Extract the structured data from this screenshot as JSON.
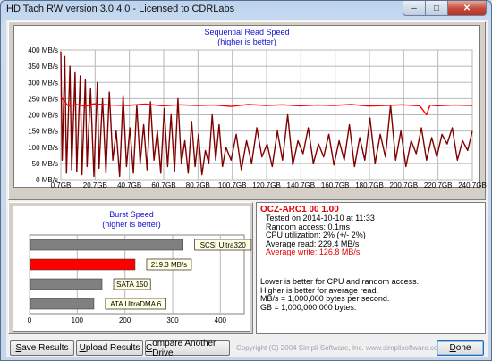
{
  "window": {
    "title": "HD Tach RW version 3.0.4.0 - Licensed to CDRLabs",
    "controls": [
      "minimize",
      "maximize",
      "close"
    ]
  },
  "sequential": {
    "title_line1": "Sequential Read Speed",
    "title_line2": "(higher is better)",
    "y_ticks": [
      "400 MB/s",
      "350 MB/s",
      "300 MB/s",
      "250 MB/s",
      "200 MB/s",
      "150 MB/s",
      "100 MB/s",
      "50 MB/s",
      "0 MB/s"
    ],
    "x_ticks": [
      "0.7GB",
      "20.7GB",
      "40.7GB",
      "60.7GB",
      "80.7GB",
      "100.7GB",
      "120.7GB",
      "140.7GB",
      "160.7GB",
      "180.7GB",
      "200.7GB",
      "220.7GB",
      "240.7GB"
    ]
  },
  "burst": {
    "title_line1": "Burst Speed",
    "title_line2": "(higher is better)",
    "x_ticks": [
      "0",
      "100",
      "200",
      "300",
      "400"
    ]
  },
  "info": {
    "drive_name": "OCZ-ARC1 00 1.00",
    "tested": "Tested on 2014-10-10 at 11:33",
    "random_access": "Random access: 0.1ms",
    "cpu_utilization": "CPU utilization: 2% (+/- 2%)",
    "average_read": "Average read: 229.4 MB/s",
    "average_write": "Average write: 126.8 MB/s",
    "note1": "Lower is better for CPU and random access.",
    "note2": "Higher is better for average read.",
    "note3": "MB/s = 1,000,000 bytes per second.",
    "note4": "GB = 1,000,000,000 bytes."
  },
  "buttons": {
    "save_prefix": "S",
    "save_rest": "ave Results",
    "upload_prefix": "U",
    "upload_rest": "pload Results",
    "compare_prefix": "C",
    "compare_rest": "ompare Another Drive",
    "done_prefix": "D",
    "done_rest": "one"
  },
  "footer": {
    "copyright": "Copyright (C) 2004 Simpli Software, Inc. www.simplisoftware.com"
  },
  "colors": {
    "read_line": "#ff0000",
    "write_line": "#800000",
    "grid": "#b8b8b8",
    "title_blue": "#1010d0"
  },
  "chart_data": [
    {
      "type": "line",
      "title": "Sequential Read Speed",
      "subtitle": "(higher is better)",
      "xlabel": "",
      "ylabel": "",
      "x_unit": "GB",
      "y_unit": "MB/s",
      "xlim": [
        0.7,
        240.7
      ],
      "ylim": [
        0,
        400
      ],
      "grid": true,
      "series": [
        {
          "color": "#ff0000",
          "x": [
            0.7,
            5,
            10,
            15,
            20,
            30,
            40,
            50,
            60,
            70,
            80,
            90,
            100,
            110,
            120,
            130,
            140,
            150,
            160,
            170,
            180,
            190,
            200,
            210,
            214,
            216,
            220,
            230,
            240.7
          ],
          "y": [
            255,
            228,
            232,
            226,
            234,
            230,
            229,
            233,
            228,
            231,
            229,
            230,
            226,
            232,
            229,
            231,
            228,
            230,
            229,
            232,
            227,
            229,
            231,
            228,
            200,
            230,
            228,
            230,
            229
          ]
        },
        {
          "color": "#800000",
          "x": [
            0.7,
            1.5,
            3,
            4,
            6,
            7,
            9,
            10,
            12,
            13,
            15,
            16,
            18,
            20,
            22,
            23,
            25,
            27,
            29,
            31,
            33,
            35,
            37,
            39,
            41,
            43,
            45,
            47,
            49,
            51,
            53,
            55,
            57,
            59,
            61,
            63,
            65,
            67,
            69,
            71,
            73,
            75,
            77,
            79,
            81,
            83,
            85,
            87,
            89,
            91,
            93,
            95,
            97,
            100,
            103,
            106,
            109,
            112,
            115,
            118,
            121,
            124,
            127,
            130,
            133,
            136,
            139,
            142,
            145,
            148,
            151,
            154,
            157,
            160,
            163,
            166,
            169,
            172,
            175,
            178,
            181,
            184,
            187,
            190,
            193,
            196,
            199,
            202,
            205,
            208,
            211,
            214,
            217,
            220,
            223,
            226,
            229,
            232,
            235,
            238,
            240.7
          ],
          "y": [
            395,
            60,
            380,
            20,
            350,
            30,
            330,
            25,
            320,
            15,
            310,
            40,
            280,
            10,
            300,
            35,
            250,
            20,
            270,
            60,
            150,
            10,
            260,
            40,
            160,
            20,
            230,
            50,
            170,
            30,
            240,
            60,
            150,
            20,
            220,
            40,
            200,
            25,
            250,
            50,
            120,
            20,
            180,
            40,
            140,
            15,
            90,
            50,
            200,
            60,
            170,
            40,
            100,
            60,
            140,
            30,
            120,
            50,
            160,
            70,
            110,
            40,
            150,
            60,
            200,
            45,
            120,
            80,
            160,
            50,
            110,
            70,
            140,
            45,
            120,
            60,
            170,
            40,
            130,
            60,
            190,
            50,
            140,
            70,
            230,
            60,
            150,
            40,
            120,
            80,
            160,
            60,
            130,
            70,
            140,
            110,
            160,
            60,
            120,
            90,
            150
          ]
        }
      ]
    },
    {
      "type": "bar",
      "title": "Burst Speed",
      "subtitle": "(higher is better)",
      "orientation": "horizontal",
      "xlim": [
        0,
        450
      ],
      "x_ticks": [
        0,
        100,
        200,
        300,
        400
      ],
      "categories": [
        "SCSI Ultra320",
        "219.3 MB/s",
        "SATA 150",
        "ATA UltraDMA 6"
      ],
      "values": [
        320,
        219.3,
        150,
        133
      ],
      "bar_colors": [
        "#808080",
        "#ff0000",
        "#808080",
        "#808080"
      ]
    }
  ]
}
